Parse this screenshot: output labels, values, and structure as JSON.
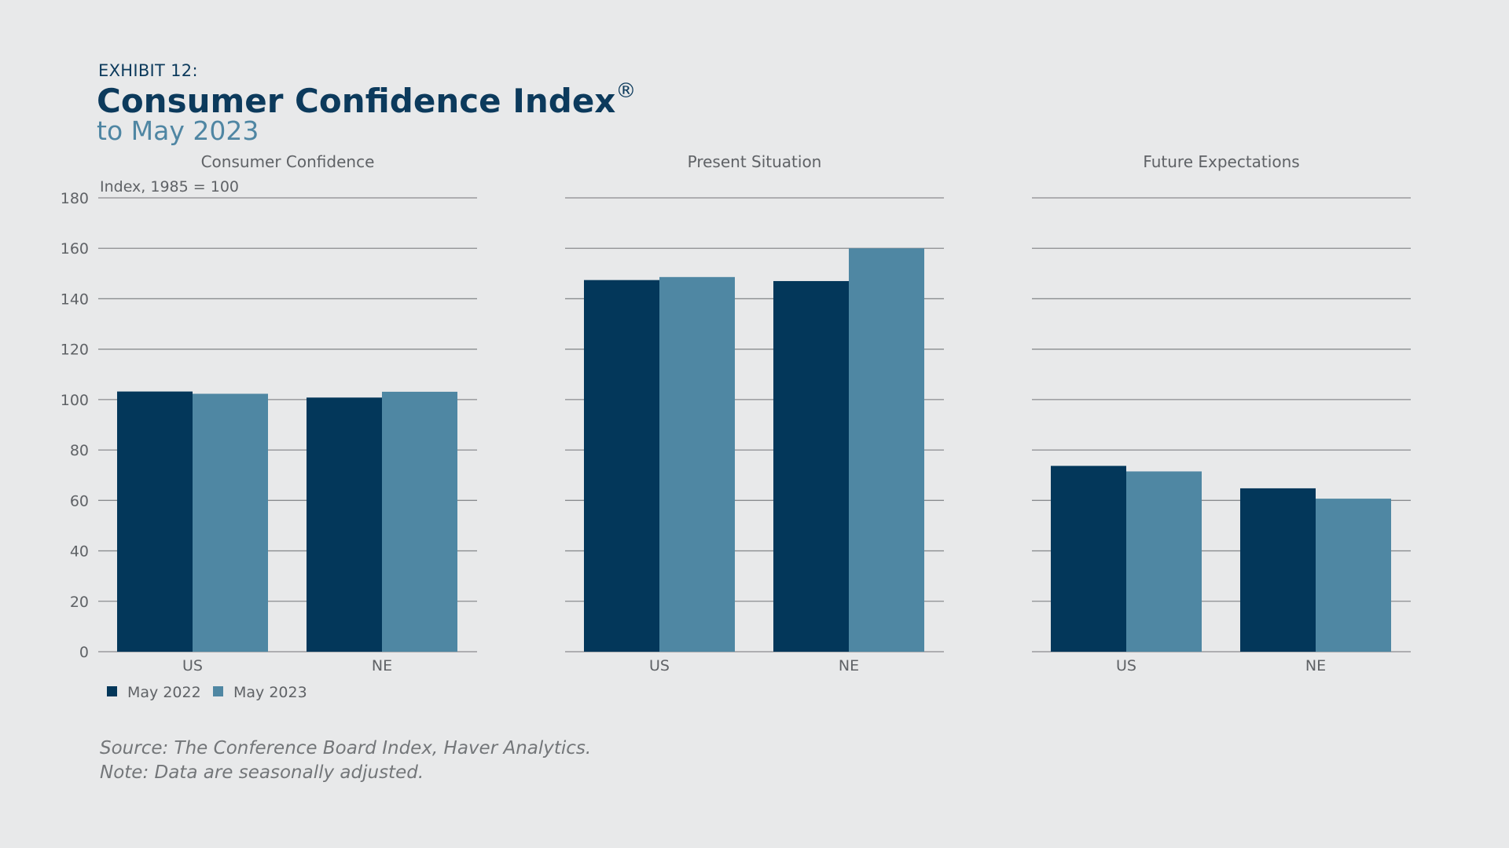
{
  "header": {
    "exhibit": "EXHIBIT 12:",
    "title": "Consumer Confidence Index",
    "title_mark": "®",
    "subtitle": "to May 2023"
  },
  "footer": {
    "source": "Source: The Conference Board Index, Haver Analytics.",
    "note": "Note: Data are seasonally adjusted."
  },
  "colors": {
    "background": "#e8e9ea",
    "series_2022": "#03375a",
    "series_2023": "#4f87a3",
    "gridline": "#8a8c8f"
  },
  "legend": {
    "items": [
      "May 2022",
      "May 2023"
    ],
    "placement": "bottom-left"
  },
  "chart_data": [
    {
      "type": "bar",
      "title": "Consumer Confidence",
      "ylabel": "Index, 1985 = 100",
      "ylim": [
        0,
        180
      ],
      "yticks": [
        0,
        20,
        40,
        60,
        80,
        100,
        120,
        140,
        160,
        180
      ],
      "grid": true,
      "categories": [
        "US",
        "NE"
      ],
      "series": [
        {
          "name": "May 2022",
          "values": [
            103.2,
            100.8
          ]
        },
        {
          "name": "May 2023",
          "values": [
            102.3,
            103.1
          ]
        }
      ]
    },
    {
      "type": "bar",
      "title": "Present Situation",
      "ylim": [
        0,
        180
      ],
      "grid": true,
      "categories": [
        "US",
        "NE"
      ],
      "series": [
        {
          "name": "May 2022",
          "values": [
            147.4,
            147.0
          ]
        },
        {
          "name": "May 2023",
          "values": [
            148.6,
            160.0
          ]
        }
      ]
    },
    {
      "type": "bar",
      "title": "Future Expectations",
      "ylim": [
        0,
        180
      ],
      "grid": true,
      "categories": [
        "US",
        "NE"
      ],
      "series": [
        {
          "name": "May 2022",
          "values": [
            73.7,
            64.8
          ]
        },
        {
          "name": "May 2023",
          "values": [
            71.5,
            60.7
          ]
        }
      ]
    }
  ]
}
